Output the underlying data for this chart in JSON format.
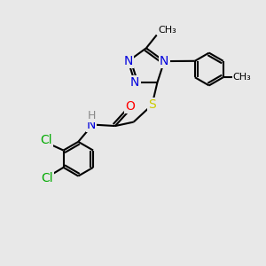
{
  "bg_color": "#e8e8e8",
  "bond_color": "#000000",
  "bond_width": 1.5,
  "atom_colors": {
    "N": "#0000dd",
    "S": "#cccc00",
    "O": "#ff0000",
    "Cl": "#00aa00",
    "C": "#000000",
    "H": "#888888"
  },
  "font_size": 10,
  "font_size_small": 9
}
